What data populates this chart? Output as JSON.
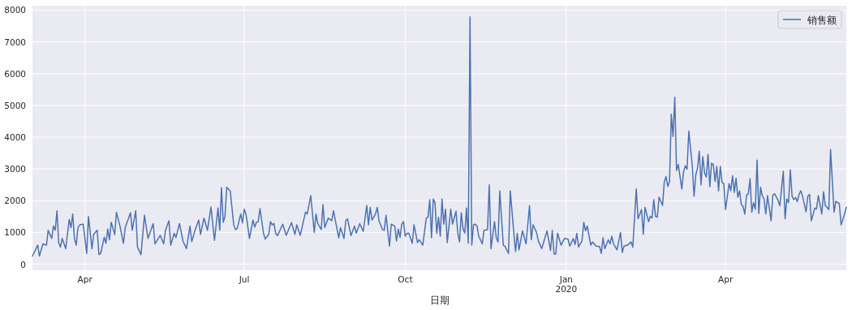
{
  "chart_data": {
    "type": "line",
    "xlabel": "日期",
    "xlim": [
      "2019-03-02",
      "2020-06-09"
    ],
    "ylim": [
      -190,
      8140
    ],
    "xticks": [
      {
        "value": "2019-04-01",
        "label": "Apr"
      },
      {
        "value": "2019-07-01",
        "label": "Jul"
      },
      {
        "value": "2019-10-01",
        "label": "Oct"
      },
      {
        "value": "2020-01-01",
        "label": "Jan\n2020"
      },
      {
        "value": "2020-04-01",
        "label": "Apr"
      }
    ],
    "yticks": [
      0,
      1000,
      2000,
      3000,
      4000,
      5000,
      6000,
      7000,
      8000
    ],
    "grid": true,
    "legend": "top right",
    "x": [
      "2019-03-02",
      "2019-03-05",
      "2019-03-06",
      "2019-03-08",
      "2019-03-10",
      "2019-03-11",
      "2019-03-13",
      "2019-03-14",
      "2019-03-15",
      "2019-03-16",
      "2019-03-17",
      "2019-03-18",
      "2019-03-19",
      "2019-03-21",
      "2019-03-23",
      "2019-03-24",
      "2019-03-25",
      "2019-03-26",
      "2019-03-27",
      "2019-03-28",
      "2019-03-29",
      "2019-03-31",
      "2019-04-02",
      "2019-04-03",
      "2019-04-05",
      "2019-04-06",
      "2019-04-08",
      "2019-04-09",
      "2019-04-10",
      "2019-04-12",
      "2019-04-13",
      "2019-04-14",
      "2019-04-15",
      "2019-04-16",
      "2019-04-18",
      "2019-04-19",
      "2019-04-21",
      "2019-04-23",
      "2019-04-24",
      "2019-04-27",
      "2019-04-28",
      "2019-04-30",
      "2019-05-01",
      "2019-05-03",
      "2019-05-05",
      "2019-05-07",
      "2019-05-10",
      "2019-05-11",
      "2019-05-14",
      "2019-05-16",
      "2019-05-17",
      "2019-05-19",
      "2019-05-20",
      "2019-05-22",
      "2019-05-23",
      "2019-05-25",
      "2019-05-27",
      "2019-05-29",
      "2019-05-31",
      "2019-06-01",
      "2019-06-03",
      "2019-06-05",
      "2019-06-06",
      "2019-06-08",
      "2019-06-10",
      "2019-06-12",
      "2019-06-14",
      "2019-06-16",
      "2019-06-17",
      "2019-06-18",
      "2019-06-19",
      "2019-06-20",
      "2019-06-21",
      "2019-06-23",
      "2019-06-25",
      "2019-06-26",
      "2019-06-27",
      "2019-06-29",
      "2019-06-30",
      "2019-07-01",
      "2019-07-02",
      "2019-07-04",
      "2019-07-06",
      "2019-07-07",
      "2019-07-08",
      "2019-07-09",
      "2019-07-10",
      "2019-07-12",
      "2019-07-13",
      "2019-07-15",
      "2019-07-16",
      "2019-07-17",
      "2019-07-18",
      "2019-07-19",
      "2019-07-20",
      "2019-07-23",
      "2019-07-25",
      "2019-07-28",
      "2019-07-30",
      "2019-07-31",
      "2019-08-02",
      "2019-08-03",
      "2019-08-05",
      "2019-08-06",
      "2019-08-08",
      "2019-08-10",
      "2019-08-11",
      "2019-08-12",
      "2019-08-14",
      "2019-08-15",
      "2019-08-16",
      "2019-08-18",
      "2019-08-20",
      "2019-08-21",
      "2019-08-24",
      "2019-08-25",
      "2019-08-27",
      "2019-08-28",
      "2019-08-29",
      "2019-08-31",
      "2019-09-02",
      "2019-09-03",
      "2019-09-05",
      "2019-09-07",
      "2019-09-09",
      "2019-09-10",
      "2019-09-11",
      "2019-09-12",
      "2019-09-14",
      "2019-09-15",
      "2019-09-16",
      "2019-09-18",
      "2019-09-19",
      "2019-09-20",
      "2019-09-22",
      "2019-09-23",
      "2019-09-25",
      "2019-09-26",
      "2019-09-27",
      "2019-09-28",
      "2019-09-29",
      "2019-09-30",
      "2019-10-01",
      "2019-10-02",
      "2019-10-03",
      "2019-10-05",
      "2019-10-06",
      "2019-10-08",
      "2019-10-09",
      "2019-10-11",
      "2019-10-13",
      "2019-10-14",
      "2019-10-15",
      "2019-10-16",
      "2019-10-17",
      "2019-10-18",
      "2019-10-19",
      "2019-10-20",
      "2019-10-21",
      "2019-10-22",
      "2019-10-23",
      "2019-10-24",
      "2019-10-25",
      "2019-10-27",
      "2019-10-28",
      "2019-10-30",
      "2019-10-31",
      "2019-11-01",
      "2019-11-02",
      "2019-11-03",
      "2019-11-04",
      "2019-11-05",
      "2019-11-06",
      "2019-11-07",
      "2019-11-08",
      "2019-11-09",
      "2019-11-10",
      "2019-11-11",
      "2019-11-12",
      "2019-11-14",
      "2019-11-15",
      "2019-11-17",
      "2019-11-18",
      "2019-11-19",
      "2019-11-21",
      "2019-11-22",
      "2019-11-23",
      "2019-11-24",
      "2019-11-26",
      "2019-11-27",
      "2019-11-29",
      "2019-11-30",
      "2019-12-02",
      "2019-12-03",
      "2019-12-04",
      "2019-12-05",
      "2019-12-07",
      "2019-12-09",
      "2019-12-11",
      "2019-12-12",
      "2019-12-13",
      "2019-12-15",
      "2019-12-16",
      "2019-12-18",
      "2019-12-21",
      "2019-12-23",
      "2019-12-24",
      "2019-12-25",
      "2019-12-26",
      "2019-12-27",
      "2019-12-29",
      "2019-12-31",
      "2020-01-02",
      "2020-01-03",
      "2020-01-05",
      "2020-01-06",
      "2020-01-07",
      "2020-01-08",
      "2020-01-10",
      "2020-01-11",
      "2020-01-12",
      "2020-01-13",
      "2020-01-15",
      "2020-01-16",
      "2020-01-18",
      "2020-01-20",
      "2020-01-21",
      "2020-01-22",
      "2020-01-23",
      "2020-01-25",
      "2020-01-26",
      "2020-01-27",
      "2020-01-28",
      "2020-01-30",
      "2020-02-01",
      "2020-02-02",
      "2020-02-03",
      "2020-02-05",
      "2020-02-07",
      "2020-02-08",
      "2020-02-10",
      "2020-02-11",
      "2020-02-13",
      "2020-02-14",
      "2020-02-15",
      "2020-02-17",
      "2020-02-18",
      "2020-02-19",
      "2020-02-20",
      "2020-02-21",
      "2020-02-22",
      "2020-02-23",
      "2020-02-25",
      "2020-02-26",
      "2020-02-27",
      "2020-02-28",
      "2020-02-29",
      "2020-03-01",
      "2020-03-02",
      "2020-03-03",
      "2020-03-04",
      "2020-03-05",
      "2020-03-07",
      "2020-03-08",
      "2020-03-09",
      "2020-03-10",
      "2020-03-11",
      "2020-03-13",
      "2020-03-14",
      "2020-03-15",
      "2020-03-16",
      "2020-03-17",
      "2020-03-18",
      "2020-03-19",
      "2020-03-20",
      "2020-03-21",
      "2020-03-22",
      "2020-03-23",
      "2020-03-24",
      "2020-03-25",
      "2020-03-26",
      "2020-03-27",
      "2020-03-28",
      "2020-03-29",
      "2020-03-30",
      "2020-03-31",
      "2020-04-01",
      "2020-04-03",
      "2020-04-04",
      "2020-04-05",
      "2020-04-06",
      "2020-04-07",
      "2020-04-08",
      "2020-04-09",
      "2020-04-10",
      "2020-04-11",
      "2020-04-12",
      "2020-04-13",
      "2020-04-14",
      "2020-04-15",
      "2020-04-16",
      "2020-04-17",
      "2020-04-18",
      "2020-04-19",
      "2020-04-20",
      "2020-04-21",
      "2020-04-22",
      "2020-04-23",
      "2020-04-24",
      "2020-04-25",
      "2020-04-27",
      "2020-04-28",
      "2020-04-29",
      "2020-05-01",
      "2020-05-02",
      "2020-05-04",
      "2020-05-05",
      "2020-05-06",
      "2020-05-07",
      "2020-05-08",
      "2020-05-09",
      "2020-05-10",
      "2020-05-11",
      "2020-05-12",
      "2020-05-13",
      "2020-05-14",
      "2020-05-15",
      "2020-05-17",
      "2020-05-18",
      "2020-05-19",
      "2020-05-20",
      "2020-05-22",
      "2020-05-23",
      "2020-05-24",
      "2020-05-26",
      "2020-05-27",
      "2020-05-28",
      "2020-05-30",
      "2020-05-31",
      "2020-06-02",
      "2020-06-03",
      "2020-06-05",
      "2020-06-06",
      "2020-06-08",
      "2020-06-09"
    ],
    "series": [
      {
        "name": "销售额",
        "color": "#4c72b0",
        "values": [
          256,
          600,
          256,
          640,
          600,
          1070,
          810,
          1200,
          1070,
          1680,
          680,
          540,
          810,
          490,
          1410,
          1150,
          1580,
          810,
          600,
          1150,
          1240,
          1260,
          340,
          1500,
          490,
          940,
          1070,
          300,
          340,
          850,
          660,
          1110,
          770,
          1320,
          930,
          1640,
          1200,
          660,
          1150,
          1620,
          1070,
          1680,
          540,
          300,
          1540,
          810,
          1280,
          640,
          910,
          640,
          1070,
          1370,
          600,
          980,
          840,
          1280,
          730,
          490,
          1200,
          710,
          1090,
          1390,
          940,
          1450,
          1070,
          1800,
          750,
          1770,
          1070,
          2410,
          1320,
          1500,
          2420,
          2310,
          1240,
          1090,
          1130,
          1580,
          1300,
          1730,
          1580,
          810,
          1390,
          1170,
          1320,
          1340,
          1750,
          980,
          790,
          940,
          1340,
          1240,
          1280,
          960,
          900,
          1260,
          910,
          1310,
          940,
          1240,
          910,
          1150,
          1640,
          1580,
          2160,
          1000,
          1580,
          1280,
          1090,
          1880,
          1150,
          1450,
          1370,
          1680,
          830,
          1150,
          810,
          1370,
          1430,
          900,
          1200,
          980,
          1280,
          1030,
          1850,
          1240,
          1790,
          1390,
          1580,
          1790,
          1370,
          1090,
          1070,
          1540,
          570,
          1260,
          1200,
          730,
          1110,
          840,
          1260,
          1340,
          880,
          970,
          980,
          660,
          1240,
          680,
          770,
          600,
          1450,
          1480,
          2030,
          830,
          2050,
          1940,
          970,
          1480,
          880,
          2050,
          1260,
          1730,
          680,
          1730,
          1260,
          1670,
          980,
          700,
          1620,
          1110,
          980,
          1770,
          660,
          7790,
          600,
          1240,
          1260,
          1200,
          880,
          640,
          1070,
          1090,
          2500,
          490,
          1340,
          830,
          700,
          2310,
          600,
          560,
          340,
          2310,
          1000,
          400,
          980,
          450,
          1050,
          640,
          1840,
          770,
          1240,
          1000,
          740,
          490,
          1050,
          430,
          1070,
          320,
          320,
          980,
          600,
          810,
          790,
          570,
          810,
          620,
          970,
          540,
          740,
          1320,
          1050,
          1200,
          600,
          700,
          570,
          560,
          340,
          830,
          490,
          770,
          640,
          880,
          640,
          450,
          1000,
          370,
          570,
          600,
          700,
          540,
          2370,
          1430,
          1720,
          940,
          1790,
          1340,
          1510,
          1450,
          2030,
          1500,
          1480,
          2110,
          1850,
          2590,
          2760,
          2450,
          2610,
          4720,
          4020,
          5260,
          2950,
          3140,
          2370,
          2910,
          3100,
          2990,
          4190,
          3100,
          2140,
          2820,
          3030,
          3560,
          2500,
          3390,
          2880,
          2740,
          3460,
          2440,
          3180,
          3140,
          2610,
          3080,
          2310,
          3080,
          2570,
          2540,
          1720,
          2540,
          2310,
          2790,
          2260,
          2710,
          2110,
          2310,
          1880,
          1820,
          1580,
          2170,
          2220,
          2690,
          1640,
          1940,
          1730,
          3280,
          1600,
          2420,
          2160,
          2050,
          1580,
          2160,
          1370,
          2170,
          2220,
          2010,
          1840,
          2930,
          1430,
          2050,
          1940,
          2970,
          2140,
          2030,
          2100,
          1970,
          2200,
          2310,
          2140,
          1650,
          2140,
          2200,
          1370,
          1770,
          1740,
          2160,
          1580,
          2280,
          1850,
          1720,
          3610,
          1640,
          1980,
          1910,
          1240,
          1580,
          1790
        ]
      }
    ]
  }
}
